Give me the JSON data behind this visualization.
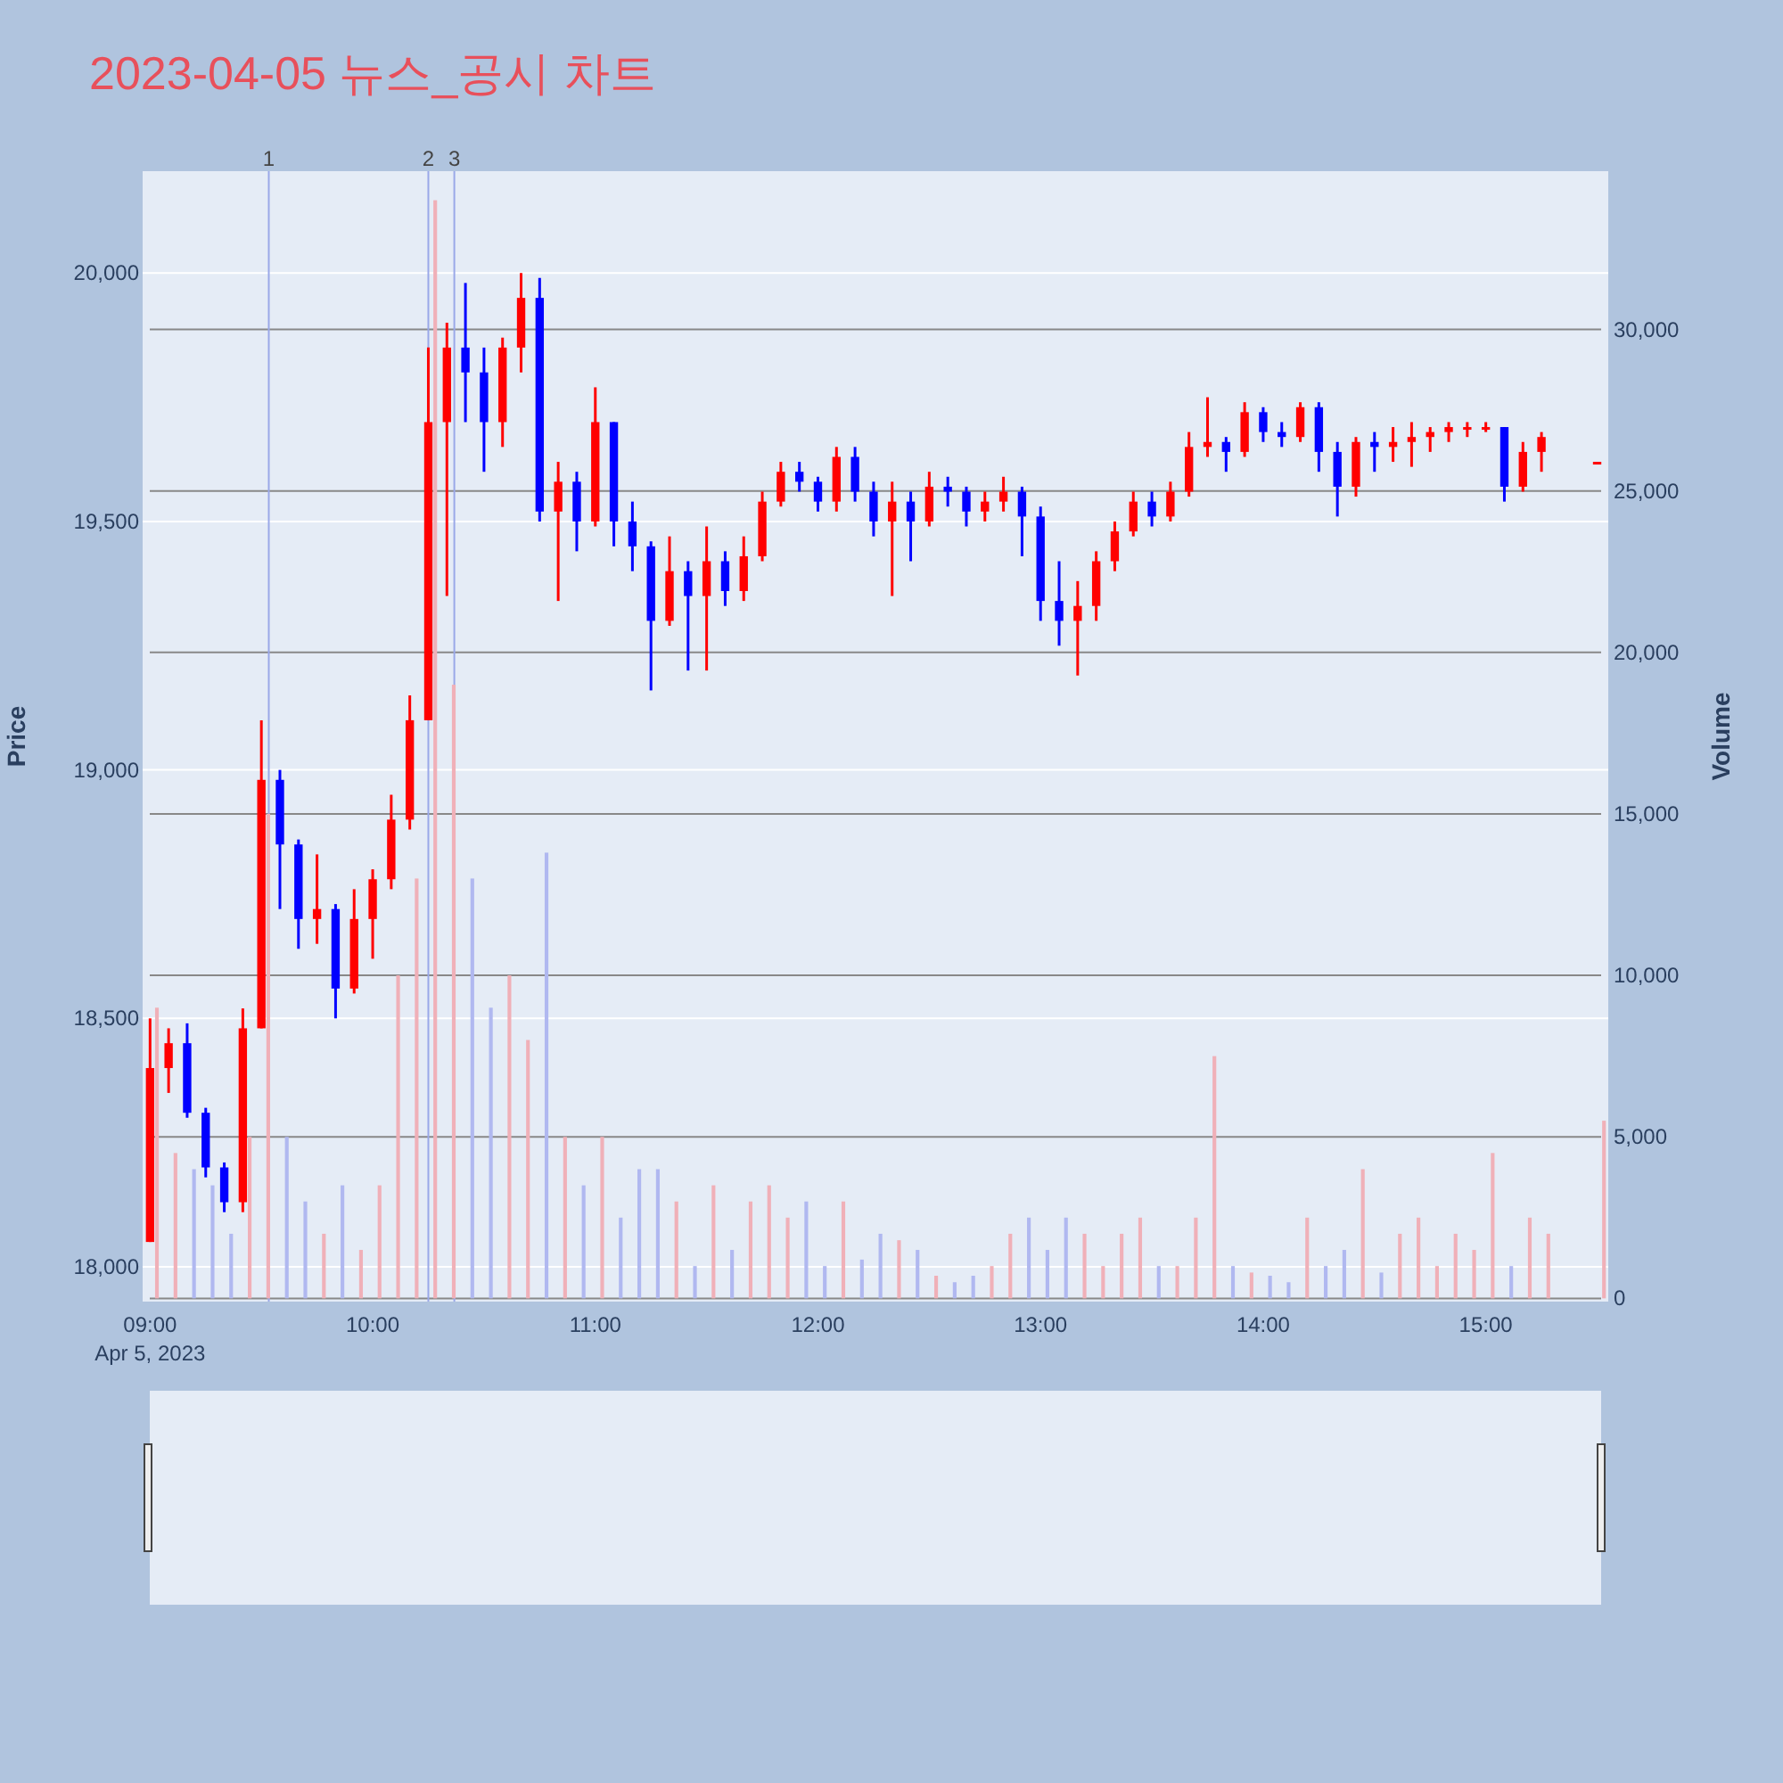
{
  "chart_data": {
    "type": "candlestick",
    "title": "2023-04-05 뉴스_공시 차트",
    "ylabel": "Price",
    "y2label": "Volume",
    "x": [
      "2023-04-05T09:00",
      "2023-04-05T09:05",
      "2023-04-05T09:10",
      "2023-04-05T09:15",
      "2023-04-05T09:20",
      "2023-04-05T09:25",
      "2023-04-05T09:30",
      "2023-04-05T09:35",
      "2023-04-05T09:40",
      "2023-04-05T09:45",
      "2023-04-05T09:50",
      "2023-04-05T09:55",
      "2023-04-05T10:00",
      "2023-04-05T10:05",
      "2023-04-05T10:10",
      "2023-04-05T10:15",
      "2023-04-05T10:20",
      "2023-04-05T10:25",
      "2023-04-05T10:30",
      "2023-04-05T10:35",
      "2023-04-05T10:40",
      "2023-04-05T10:45",
      "2023-04-05T10:50",
      "2023-04-05T10:55",
      "2023-04-05T11:00",
      "2023-04-05T11:05",
      "2023-04-05T11:10",
      "2023-04-05T11:15",
      "2023-04-05T11:20",
      "2023-04-05T11:25",
      "2023-04-05T11:30",
      "2023-04-05T11:35",
      "2023-04-05T11:40",
      "2023-04-05T11:45",
      "2023-04-05T11:50",
      "2023-04-05T11:55",
      "2023-04-05T12:00",
      "2023-04-05T12:05",
      "2023-04-05T12:10",
      "2023-04-05T12:15",
      "2023-04-05T12:20",
      "2023-04-05T12:25",
      "2023-04-05T12:30",
      "2023-04-05T12:35",
      "2023-04-05T12:40",
      "2023-04-05T12:45",
      "2023-04-05T12:50",
      "2023-04-05T12:55",
      "2023-04-05T13:00",
      "2023-04-05T13:05",
      "2023-04-05T13:10",
      "2023-04-05T13:15",
      "2023-04-05T13:20",
      "2023-04-05T13:25",
      "2023-04-05T13:30",
      "2023-04-05T13:35",
      "2023-04-05T13:40",
      "2023-04-05T13:45",
      "2023-04-05T13:50",
      "2023-04-05T13:55",
      "2023-04-05T14:00",
      "2023-04-05T14:05",
      "2023-04-05T14:10",
      "2023-04-05T14:15",
      "2023-04-05T14:20",
      "2023-04-05T14:25",
      "2023-04-05T14:30",
      "2023-04-05T14:35",
      "2023-04-05T14:40",
      "2023-04-05T14:45",
      "2023-04-05T14:50",
      "2023-04-05T14:55",
      "2023-04-05T15:00",
      "2023-04-05T15:05",
      "2023-04-05T15:10",
      "2023-04-05T15:15",
      "2023-04-05T15:30"
    ],
    "series": [
      {
        "type": "bar",
        "axis": "y2",
        "values": [
          9000,
          4500,
          4000,
          3500,
          2000,
          5000,
          15000,
          5000,
          3000,
          2000,
          3500,
          1500,
          3500,
          10000,
          13000,
          34000,
          19000,
          13000,
          9000,
          10000,
          8000,
          13800,
          5000,
          3500,
          5000,
          2500,
          4000,
          4000,
          3000,
          1000,
          3500,
          1500,
          3000,
          3500,
          2500,
          3000,
          1000,
          3000,
          1200,
          2000,
          1800,
          1500,
          700,
          500,
          700,
          1000,
          2000,
          2500,
          1500,
          2500,
          2000,
          1000,
          2000,
          2500,
          1000,
          1000,
          2500,
          7500,
          1000,
          800,
          700,
          500,
          2500,
          1000,
          1500,
          4000,
          800,
          2000,
          2500,
          1000,
          2000,
          1500,
          4500,
          1000,
          2500,
          2000,
          5500
        ],
        "colors": [
          "#f0b0b8",
          "#f0b0b8",
          "#b0b8f0",
          "#b0b8f0",
          "#b0b8f0",
          "#f0b0b8",
          "#f0b0b8",
          "#b0b8f0",
          "#b0b8f0",
          "#f0b0b8",
          "#b0b8f0",
          "#f0b0b8",
          "#f0b0b8",
          "#f0b0b8",
          "#f0b0b8",
          "#f0b0b8",
          "#f0b0b8",
          "#b0b8f0",
          "#b0b8f0",
          "#f0b0b8",
          "#f0b0b8",
          "#b0b8f0",
          "#f0b0b8",
          "#b0b8f0",
          "#f0b0b8",
          "#b0b8f0",
          "#b0b8f0",
          "#b0b8f0",
          "#f0b0b8",
          "#b0b8f0",
          "#f0b0b8",
          "#b0b8f0",
          "#f0b0b8",
          "#f0b0b8",
          "#f0b0b8",
          "#b0b8f0",
          "#b0b8f0",
          "#f0b0b8",
          "#b0b8f0",
          "#b0b8f0",
          "#f0b0b8",
          "#b0b8f0",
          "#f0b0b8",
          "#b0b8f0",
          "#b0b8f0",
          "#f0b0b8",
          "#f0b0b8",
          "#b0b8f0",
          "#b0b8f0",
          "#b0b8f0",
          "#f0b0b8",
          "#f0b0b8",
          "#f0b0b8",
          "#f0b0b8",
          "#b0b8f0",
          "#f0b0b8",
          "#f0b0b8",
          "#f0b0b8",
          "#b0b8f0",
          "#f0b0b8",
          "#b0b8f0",
          "#b0b8f0",
          "#f0b0b8",
          "#b0b8f0",
          "#b0b8f0",
          "#f0b0b8",
          "#b0b8f0",
          "#f0b0b8",
          "#f0b0b8",
          "#f0b0b8",
          "#f0b0b8",
          "#f0b0b8",
          "#f0b0b8",
          "#b0b8f0",
          "#f0b0b8",
          "#f0b0b8",
          "#f0b0b8"
        ]
      },
      {
        "ohlc": [
          [
            18050,
            18500,
            18050,
            18400
          ],
          [
            18400,
            18480,
            18350,
            18450
          ],
          [
            18450,
            18490,
            18300,
            18310
          ],
          [
            18310,
            18320,
            18180,
            18200
          ],
          [
            18200,
            18210,
            18110,
            18130
          ],
          [
            18130,
            18520,
            18110,
            18480
          ],
          [
            18480,
            19100,
            18480,
            18980
          ],
          [
            18980,
            19000,
            18720,
            18850
          ],
          [
            18850,
            18860,
            18640,
            18700
          ],
          [
            18700,
            18830,
            18650,
            18720
          ],
          [
            18720,
            18730,
            18500,
            18560
          ],
          [
            18560,
            18760,
            18550,
            18700
          ],
          [
            18700,
            18800,
            18620,
            18780
          ],
          [
            18780,
            18950,
            18760,
            18900
          ],
          [
            18900,
            19150,
            18880,
            19100
          ],
          [
            19100,
            19850,
            19100,
            19700
          ],
          [
            19700,
            19900,
            19350,
            19850
          ],
          [
            19850,
            19980,
            19700,
            19800
          ],
          [
            19800,
            19850,
            19600,
            19700
          ],
          [
            19700,
            19870,
            19650,
            19850
          ],
          [
            19850,
            20000,
            19800,
            19950
          ],
          [
            19950,
            19990,
            19500,
            19520
          ],
          [
            19520,
            19620,
            19340,
            19580
          ],
          [
            19580,
            19600,
            19440,
            19500
          ],
          [
            19500,
            19770,
            19490,
            19700
          ],
          [
            19700,
            19700,
            19450,
            19500
          ],
          [
            19500,
            19540,
            19400,
            19450
          ],
          [
            19450,
            19460,
            19160,
            19300
          ],
          [
            19300,
            19470,
            19290,
            19400
          ],
          [
            19400,
            19420,
            19200,
            19350
          ],
          [
            19350,
            19490,
            19200,
            19420
          ],
          [
            19420,
            19440,
            19330,
            19360
          ],
          [
            19360,
            19470,
            19340,
            19430
          ],
          [
            19430,
            19560,
            19420,
            19540
          ],
          [
            19540,
            19620,
            19530,
            19600
          ],
          [
            19600,
            19620,
            19560,
            19580
          ],
          [
            19580,
            19590,
            19520,
            19540
          ],
          [
            19540,
            19650,
            19520,
            19630
          ],
          [
            19630,
            19650,
            19540,
            19560
          ],
          [
            19560,
            19580,
            19470,
            19500
          ],
          [
            19500,
            19580,
            19350,
            19540
          ],
          [
            19540,
            19560,
            19420,
            19500
          ],
          [
            19500,
            19600,
            19490,
            19570
          ],
          [
            19570,
            19590,
            19530,
            19560
          ],
          [
            19560,
            19570,
            19490,
            19520
          ],
          [
            19520,
            19560,
            19500,
            19540
          ],
          [
            19540,
            19590,
            19520,
            19560
          ],
          [
            19560,
            19570,
            19430,
            19510
          ],
          [
            19510,
            19530,
            19300,
            19340
          ],
          [
            19340,
            19420,
            19250,
            19300
          ],
          [
            19300,
            19380,
            19190,
            19330
          ],
          [
            19330,
            19440,
            19300,
            19420
          ],
          [
            19420,
            19500,
            19400,
            19480
          ],
          [
            19480,
            19560,
            19470,
            19540
          ],
          [
            19540,
            19560,
            19490,
            19510
          ],
          [
            19510,
            19580,
            19500,
            19560
          ],
          [
            19560,
            19680,
            19550,
            19650
          ],
          [
            19650,
            19750,
            19630,
            19660
          ],
          [
            19660,
            19670,
            19600,
            19640
          ],
          [
            19640,
            19740,
            19630,
            19720
          ],
          [
            19720,
            19730,
            19660,
            19680
          ],
          [
            19680,
            19700,
            19650,
            19670
          ],
          [
            19670,
            19740,
            19660,
            19730
          ],
          [
            19730,
            19740,
            19600,
            19640
          ],
          [
            19640,
            19660,
            19510,
            19570
          ],
          [
            19570,
            19670,
            19550,
            19660
          ],
          [
            19660,
            19680,
            19600,
            19650
          ],
          [
            19650,
            19690,
            19620,
            19660
          ],
          [
            19660,
            19700,
            19610,
            19670
          ],
          [
            19670,
            19690,
            19640,
            19680
          ],
          [
            19680,
            19700,
            19660,
            19690
          ],
          [
            19690,
            19700,
            19670,
            19690
          ],
          [
            19690,
            19700,
            19680,
            19690
          ],
          [
            19690,
            19690,
            19540,
            19570
          ],
          [
            19570,
            19660,
            19560,
            19640
          ],
          [
            19640,
            19680,
            19600,
            19670
          ],
          [
            19620,
            19620,
            19620,
            19620
          ]
        ],
        "colors": [
          "#ff0000",
          "#ff0000",
          "#0000ff",
          "#0000ff",
          "#0000ff",
          "#ff0000",
          "#ff0000",
          "#0000ff",
          "#0000ff",
          "#ff0000",
          "#0000ff",
          "#ff0000",
          "#ff0000",
          "#ff0000",
          "#ff0000",
          "#ff0000",
          "#ff0000",
          "#0000ff",
          "#0000ff",
          "#ff0000",
          "#ff0000",
          "#0000ff",
          "#ff0000",
          "#0000ff",
          "#ff0000",
          "#0000ff",
          "#0000ff",
          "#0000ff",
          "#ff0000",
          "#0000ff",
          "#ff0000",
          "#0000ff",
          "#ff0000",
          "#ff0000",
          "#ff0000",
          "#0000ff",
          "#0000ff",
          "#ff0000",
          "#0000ff",
          "#0000ff",
          "#ff0000",
          "#0000ff",
          "#ff0000",
          "#0000ff",
          "#0000ff",
          "#ff0000",
          "#ff0000",
          "#0000ff",
          "#0000ff",
          "#0000ff",
          "#ff0000",
          "#ff0000",
          "#ff0000",
          "#ff0000",
          "#0000ff",
          "#ff0000",
          "#ff0000",
          "#ff0000",
          "#0000ff",
          "#ff0000",
          "#0000ff",
          "#0000ff",
          "#ff0000",
          "#0000ff",
          "#0000ff",
          "#ff0000",
          "#0000ff",
          "#ff0000",
          "#ff0000",
          "#ff0000",
          "#ff0000",
          "#ff0000",
          "#ff0000",
          "#0000ff",
          "#ff0000",
          "#ff0000",
          "#ff0000"
        ]
      }
    ],
    "xlim": [
      "2023-04-05T08:58",
      "2023-04-05T15:33"
    ],
    "xticks": [
      {
        "value": "2023-04-05T09:00",
        "label": "09:00\nApr 5, 2023"
      },
      {
        "value": "2023-04-05T10:00",
        "label": "10:00"
      },
      {
        "value": "2023-04-05T11:00",
        "label": "11:00"
      },
      {
        "value": "2023-04-05T12:00",
        "label": "12:00"
      },
      {
        "value": "2023-04-05T13:00",
        "label": "13:00"
      },
      {
        "value": "2023-04-05T14:00",
        "label": "14:00"
      },
      {
        "value": "2023-04-05T15:00",
        "label": "15:00"
      }
    ],
    "ylim": [
      17930,
      20205
    ],
    "yticks": [
      {
        "value": 18000,
        "label": "18,000"
      },
      {
        "value": 18500,
        "label": "18,500"
      },
      {
        "value": 19000,
        "label": "19,000"
      },
      {
        "value": 19500,
        "label": "19,500"
      },
      {
        "value": 20000,
        "label": "20,000"
      }
    ],
    "y2lim": [
      -100,
      34900
    ],
    "y2ticks": [
      0,
      {
        "value": 5000,
        "label": "5,000"
      },
      {
        "value": 10000,
        "label": "10,000"
      },
      {
        "value": 15000,
        "label": "15,000"
      },
      {
        "value": 20000,
        "label": "20,000"
      },
      {
        "value": 25000,
        "label": "25,000"
      },
      {
        "value": 30000,
        "label": "30,000"
      }
    ],
    "ref_lines": [
      {
        "axis": "x",
        "value": "2023-04-05T09:32",
        "label": "1",
        "color": "#9aa8e8"
      },
      {
        "axis": "x",
        "value": "2023-04-05T10:15",
        "label": "2",
        "color": "#9aa8e8"
      },
      {
        "axis": "x",
        "value": "2023-04-05T10:22",
        "label": "3",
        "color": "#9aa8e8"
      }
    ],
    "grid": true
  }
}
